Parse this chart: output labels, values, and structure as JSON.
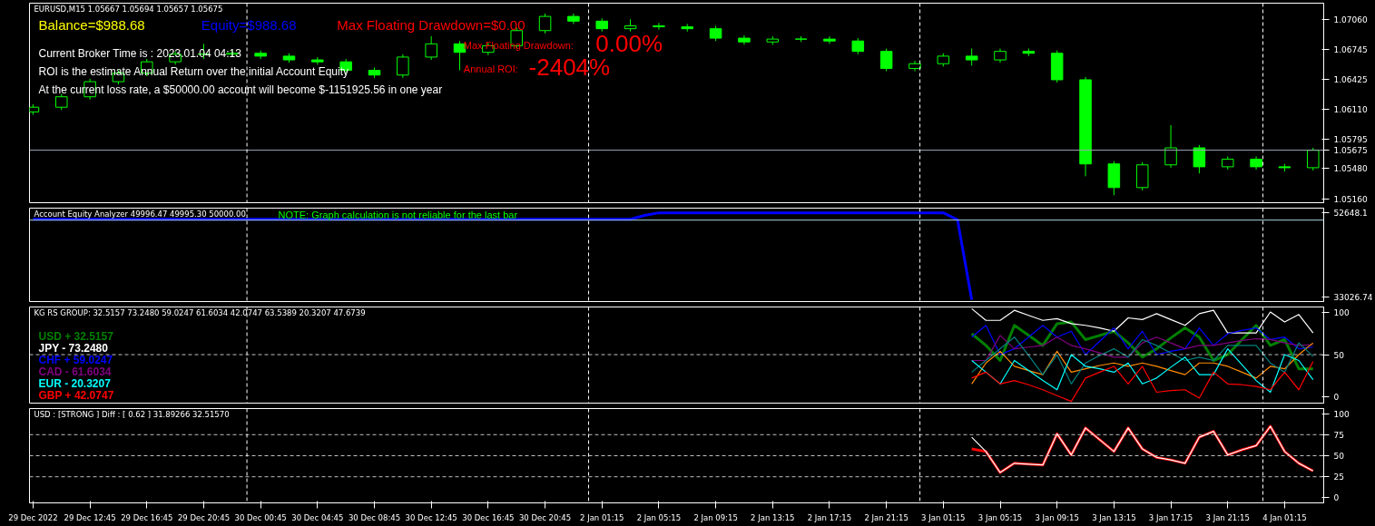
{
  "chart_data": [
    {
      "type": "candlestick",
      "title": "EURUSD,M15  1.05667 1.05694 1.05657 1.05675",
      "color": "#00ff00",
      "tick_labels": "y",
      "categories": [
        null,
        null,
        null,
        null,
        null,
        null,
        null,
        null,
        null,
        null,
        null,
        null,
        null,
        null,
        null,
        null,
        null,
        null,
        null,
        null,
        null,
        null,
        null,
        null,
        null,
        null,
        null,
        null,
        null,
        null,
        null,
        null,
        null,
        null,
        null,
        null,
        null,
        null,
        null,
        null,
        null,
        null,
        null,
        null,
        null,
        null,
        null,
        null,
        null,
        null,
        null,
        null,
        null,
        null,
        null,
        null,
        null,
        null,
        null,
        null,
        null,
        null,
        null,
        null,
        null,
        null,
        null,
        null,
        null,
        null,
        null,
        null,
        null,
        null,
        null,
        null,
        null,
        null,
        null,
        null,
        null,
        null,
        null,
        null,
        null,
        null,
        null,
        null,
        null,
        null,
        null
      ],
      "ohlc": [
        [
          1.0608,
          1.0616,
          1.0605,
          1.0613
        ],
        null,
        [
          1.0613,
          1.0627,
          1.061,
          1.0624
        ],
        null,
        [
          1.0624,
          1.0643,
          1.0621,
          1.064
        ],
        null,
        [
          1.064,
          1.0652,
          1.0637,
          1.0649
        ],
        null,
        [
          1.0649,
          1.0664,
          1.0646,
          1.0661
        ],
        null,
        [
          1.0661,
          1.0672,
          1.0658,
          1.0669
        ],
        null,
        [
          1.0669,
          1.068,
          1.0664,
          1.0669
        ],
        null,
        [
          1.0669,
          1.0673,
          1.0666,
          1.067
        ],
        null,
        [
          1.067,
          1.0673,
          1.0664,
          1.0667
        ],
        null,
        [
          1.0667,
          1.067,
          1.066,
          1.0663
        ],
        null,
        [
          1.0663,
          1.0666,
          1.0658,
          1.0661
        ],
        null,
        [
          1.0661,
          1.0664,
          1.0649,
          1.0652
        ],
        null,
        [
          1.0652,
          1.0655,
          1.0644,
          1.0647
        ],
        null,
        [
          1.0647,
          1.0669,
          1.0644,
          1.0666
        ],
        null,
        [
          1.0666,
          1.0688,
          1.0663,
          1.068
        ],
        null,
        [
          1.068,
          1.0683,
          1.0652,
          1.0671
        ],
        null,
        [
          1.0671,
          1.0681,
          1.0668,
          1.0678
        ],
        null,
        [
          1.0678,
          1.0697,
          1.0675,
          1.0694
        ],
        null,
        [
          1.0694,
          1.0712,
          1.0691,
          1.0709
        ],
        null,
        [
          1.0709,
          1.0712,
          1.0701,
          1.0704
        ],
        null,
        [
          1.0704,
          1.0707,
          1.0693,
          1.0696
        ],
        null,
        [
          1.0696,
          1.0706,
          1.0693,
          1.0699
        ],
        null,
        [
          1.0699,
          1.0702,
          1.0695,
          1.0698
        ],
        null,
        [
          1.0698,
          1.0701,
          1.0693,
          1.0696
        ],
        null,
        [
          1.0696,
          1.0699,
          1.0683,
          1.0686
        ],
        null,
        [
          1.0686,
          1.0689,
          1.0679,
          1.0682
        ],
        null,
        [
          1.0682,
          1.0688,
          1.0679,
          1.0685
        ],
        null,
        [
          1.0685,
          1.0688,
          1.0682,
          1.0685
        ],
        null,
        [
          1.0685,
          1.0688,
          1.068,
          1.0683
        ],
        null,
        [
          1.0683,
          1.0686,
          1.0669,
          1.0672
        ],
        null,
        [
          1.0672,
          1.0675,
          1.0651,
          1.0654
        ],
        null,
        [
          1.0654,
          1.0662,
          1.0651,
          1.0659
        ],
        null,
        [
          1.0659,
          1.067,
          1.0656,
          1.0667
        ],
        null,
        [
          1.0667,
          1.0675,
          1.0657,
          1.0663
        ],
        null,
        [
          1.0663,
          1.0675,
          1.066,
          1.0672
        ],
        null,
        [
          1.0672,
          1.0675,
          1.0667,
          1.067
        ],
        null,
        [
          1.067,
          1.0673,
          1.0639,
          1.0642
        ],
        null,
        [
          1.0642,
          1.0645,
          1.054,
          1.0553
        ],
        null,
        [
          1.0553,
          1.0556,
          1.052,
          1.0528
        ],
        null,
        [
          1.0528,
          1.0555,
          1.0525,
          1.0552
        ],
        null,
        [
          1.0552,
          1.0594,
          1.0549,
          1.057
        ],
        null,
        [
          1.057,
          1.0573,
          1.0543,
          1.055
        ],
        null,
        [
          1.055,
          1.0561,
          1.0547,
          1.0558
        ],
        null,
        [
          1.0558,
          1.0561,
          1.0547,
          1.055
        ],
        null,
        [
          1.055,
          1.0553,
          1.0545,
          1.0549
        ],
        null,
        [
          1.0549,
          1.057,
          1.0546,
          1.05675
        ]
      ],
      "ylim": [
        1.0512,
        1.0723
      ],
      "yticks": [
        {
          "value": 1.0706,
          "label": "1.07060"
        },
        1.06745,
        1.06425,
        {
          "value": 1.0611,
          "label": "1.06110"
        },
        1.05795,
        {
          "value": 1.0548,
          "label": "1.05480"
        },
        {
          "value": 1.0516,
          "label": "1.05160"
        }
      ],
      "ref_lines": [
        {
          "axis": "y",
          "value": 1.05675,
          "label": "1.05675",
          "color": "#a0a8b8",
          "line_style": "solid"
        }
      ],
      "annotations": [
        "Balance=$988.68",
        "Equity=$988.68",
        "Max Floating Drawdown=$0.00",
        "Current Broker Time is : 2023.01.04 04:13",
        "ROI is the estimate Annual Return over the initial Account Equity",
        "At the current loss rate,  a $50000.00 account will become $-1151925.56 in one year",
        "Max Floating Drawdown:",
        "0.00%",
        "Annual ROI:",
        "-2404%"
      ]
    },
    {
      "type": "line",
      "title": "Account Equity Analyzer 49996.47 49995.30 50000.00",
      "tick_labels": "y",
      "categories": [
        null,
        null,
        null,
        null,
        null,
        null,
        null,
        null,
        null,
        null,
        null,
        null,
        null,
        null,
        null,
        null,
        null,
        null,
        null,
        null,
        null,
        null,
        null,
        null,
        null,
        null,
        null,
        null,
        null,
        null,
        null,
        null,
        null,
        null,
        null,
        null,
        null,
        null,
        null,
        null,
        null,
        null,
        null,
        null,
        null,
        null,
        null,
        null,
        null,
        null,
        null,
        null,
        null,
        null,
        null,
        null,
        null,
        null,
        null,
        null,
        null,
        null,
        null,
        null,
        null,
        null,
        null,
        null,
        null,
        null,
        null,
        null,
        null,
        null,
        null,
        null,
        null,
        null,
        null,
        null,
        null,
        null,
        null,
        null,
        null,
        null,
        null,
        null,
        null,
        null,
        null
      ],
      "series": [
        {
          "color": "#0000ff",
          "values": [
            51100,
            51100,
            51100,
            51100,
            51100,
            51100,
            51100,
            51100,
            51100,
            51100,
            51100,
            51100,
            51100,
            51100,
            51100,
            51100,
            51100,
            51100,
            51100,
            51100,
            51100,
            51100,
            51100,
            51100,
            51100,
            51100,
            51100,
            51100,
            51100,
            51100,
            51100,
            51100,
            51100,
            51100,
            51100,
            51100,
            51100,
            51100,
            51100,
            51100,
            51100,
            51100,
            51100,
            52000,
            52600,
            52600,
            52600,
            52600,
            52600,
            52600,
            52600,
            52600,
            52600,
            52600,
            52600,
            52600,
            52600,
            52600,
            52600,
            52600,
            52600,
            52600,
            52600,
            52600,
            52600,
            51000,
            32400,
            null,
            null,
            null,
            null,
            null,
            null,
            null,
            null,
            null,
            null,
            null,
            null,
            null,
            null,
            null,
            null,
            null,
            null,
            null,
            null,
            null,
            null,
            null,
            null
          ]
        }
      ],
      "ylim": [
        31994,
        53681
      ],
      "yticks": [
        52648.1,
        33026.74
      ],
      "ref_lines": [
        {
          "axis": "y",
          "value": 50900,
          "color": "#add8e6",
          "line_style": "solid"
        }
      ],
      "annotations": [
        "NOTE: Graph calculation is not reliable for the last bar"
      ]
    },
    {
      "type": "line",
      "title": "KG RS GROUP:   32.5157 73.2480 59.0247 61.6034 42.0747 63.5389 20.3207 47.6739",
      "tick_labels": "y",
      "legend": "bottom left",
      "categories": [
        null,
        null,
        null,
        null,
        null,
        null,
        null,
        null,
        null,
        null,
        null,
        null,
        null,
        null,
        null,
        null,
        null,
        null,
        null,
        null,
        null,
        null,
        null,
        null,
        null,
        null,
        null,
        null,
        null,
        null,
        null,
        null,
        null,
        null,
        null,
        null,
        null,
        null,
        null,
        null,
        null,
        null,
        null,
        null,
        null,
        null,
        null,
        null,
        null,
        null,
        null,
        null,
        null,
        null,
        null,
        null,
        null,
        null,
        null,
        null,
        null,
        null,
        null,
        null,
        null,
        null,
        null,
        null,
        null,
        null,
        null,
        null,
        null,
        null,
        null,
        null,
        null,
        null,
        null,
        null,
        null,
        null,
        null,
        null,
        null,
        null,
        null,
        null,
        null,
        null,
        null
      ],
      "series": [
        {
          "name": "USD +  32.5157",
          "color": "#008000",
          "values": [
            null,
            null,
            null,
            null,
            null,
            null,
            null,
            null,
            null,
            null,
            null,
            null,
            null,
            null,
            null,
            null,
            null,
            null,
            null,
            null,
            null,
            null,
            null,
            null,
            null,
            null,
            null,
            null,
            null,
            null,
            null,
            null,
            null,
            null,
            null,
            null,
            null,
            null,
            null,
            null,
            null,
            null,
            null,
            null,
            null,
            null,
            null,
            null,
            null,
            null,
            null,
            null,
            null,
            null,
            null,
            null,
            null,
            null,
            null,
            null,
            null,
            null,
            null,
            null,
            null,
            null,
            75,
            61,
            43,
            85,
            73,
            61,
            87,
            89,
            68,
            73,
            78,
            64,
            47,
            57,
            70,
            82,
            71,
            43,
            50,
            68,
            85,
            61,
            68,
            33,
            33
          ]
        },
        {
          "name": "JPY -  73.2480",
          "color": "#ffffff",
          "values": [
            null,
            null,
            null,
            null,
            null,
            null,
            null,
            null,
            null,
            null,
            null,
            null,
            null,
            null,
            null,
            null,
            null,
            null,
            null,
            null,
            null,
            null,
            null,
            null,
            null,
            null,
            null,
            null,
            null,
            null,
            null,
            null,
            null,
            null,
            null,
            null,
            null,
            null,
            null,
            null,
            null,
            null,
            null,
            null,
            null,
            null,
            null,
            null,
            null,
            null,
            null,
            null,
            null,
            null,
            null,
            null,
            null,
            null,
            null,
            null,
            null,
            null,
            null,
            null,
            null,
            null,
            105,
            91,
            91,
            103,
            97,
            91,
            93,
            87,
            85,
            82,
            78,
            94,
            92,
            99,
            92,
            85,
            99,
            103,
            76,
            76,
            76,
            101,
            89,
            98,
            76
          ]
        },
        {
          "name": "CHF +  59.0247",
          "color": "#0000ff",
          "values": [
            null,
            null,
            null,
            null,
            null,
            null,
            null,
            null,
            null,
            null,
            null,
            null,
            null,
            null,
            null,
            null,
            null,
            null,
            null,
            null,
            null,
            null,
            null,
            null,
            null,
            null,
            null,
            null,
            null,
            null,
            null,
            null,
            null,
            null,
            null,
            null,
            null,
            null,
            null,
            null,
            null,
            null,
            null,
            null,
            null,
            null,
            null,
            null,
            null,
            null,
            null,
            null,
            null,
            null,
            null,
            null,
            null,
            null,
            null,
            null,
            null,
            null,
            null,
            null,
            null,
            null,
            71,
            85,
            50,
            57,
            71,
            85,
            71,
            78,
            50,
            66,
            82,
            57,
            78,
            50,
            54,
            57,
            82,
            61,
            75,
            79,
            82,
            68,
            71,
            57,
            59
          ]
        },
        {
          "name": "CAD -  61.6034",
          "color": "#800080",
          "values": [
            null,
            null,
            null,
            null,
            null,
            null,
            null,
            null,
            null,
            null,
            null,
            null,
            null,
            null,
            null,
            null,
            null,
            null,
            null,
            null,
            null,
            null,
            null,
            null,
            null,
            null,
            null,
            null,
            null,
            null,
            null,
            null,
            null,
            null,
            null,
            null,
            null,
            null,
            null,
            null,
            null,
            null,
            null,
            null,
            null,
            null,
            null,
            null,
            null,
            null,
            null,
            null,
            null,
            null,
            null,
            null,
            null,
            null,
            null,
            null,
            null,
            null,
            null,
            null,
            null,
            null,
            43,
            43,
            73,
            57,
            59,
            61,
            71,
            61,
            57,
            52,
            47,
            47,
            64,
            71,
            64,
            57,
            61,
            61,
            64,
            67,
            69,
            68,
            64,
            61,
            62
          ]
        },
        {
          "color": "#ff8c00",
          "values": [
            null,
            null,
            null,
            null,
            null,
            null,
            null,
            null,
            null,
            null,
            null,
            null,
            null,
            null,
            null,
            null,
            null,
            null,
            null,
            null,
            null,
            null,
            null,
            null,
            null,
            null,
            null,
            null,
            null,
            null,
            null,
            null,
            null,
            null,
            null,
            null,
            null,
            null,
            null,
            null,
            null,
            null,
            null,
            null,
            null,
            null,
            null,
            null,
            null,
            null,
            null,
            null,
            null,
            null,
            null,
            null,
            null,
            null,
            null,
            null,
            null,
            null,
            null,
            null,
            null,
            null,
            15,
            40,
            54,
            36,
            31,
            26,
            54,
            29,
            33,
            37,
            40,
            36,
            40,
            36,
            31,
            26,
            40,
            40,
            36,
            29,
            22,
            36,
            33,
            50,
            64
          ]
        },
        {
          "color": "#008080",
          "values": [
            null,
            null,
            null,
            null,
            null,
            null,
            null,
            null,
            null,
            null,
            null,
            null,
            null,
            null,
            null,
            null,
            null,
            null,
            null,
            null,
            null,
            null,
            null,
            null,
            null,
            null,
            null,
            null,
            null,
            null,
            null,
            null,
            null,
            null,
            null,
            null,
            null,
            null,
            null,
            null,
            null,
            null,
            null,
            null,
            null,
            null,
            null,
            null,
            null,
            null,
            null,
            null,
            null,
            null,
            null,
            null,
            null,
            null,
            null,
            null,
            null,
            null,
            null,
            null,
            null,
            null,
            29,
            43,
            57,
            71,
            49,
            26,
            50,
            15,
            40,
            49,
            57,
            47,
            68,
            61,
            52,
            43,
            47,
            43,
            61,
            61,
            61,
            40,
            29,
            64,
            48
          ]
        },
        {
          "name": "EUR -  20.3207",
          "color": "#00ffff",
          "values": [
            null,
            null,
            null,
            null,
            null,
            null,
            null,
            null,
            null,
            null,
            null,
            null,
            null,
            null,
            null,
            null,
            null,
            null,
            null,
            null,
            null,
            null,
            null,
            null,
            null,
            null,
            null,
            null,
            null,
            null,
            null,
            null,
            null,
            null,
            null,
            null,
            null,
            null,
            null,
            null,
            null,
            null,
            null,
            null,
            null,
            null,
            null,
            null,
            null,
            null,
            null,
            null,
            null,
            null,
            null,
            null,
            null,
            null,
            null,
            null,
            null,
            null,
            null,
            null,
            null,
            null,
            43,
            29,
            15,
            43,
            31,
            19,
            8,
            50,
            36,
            33,
            29,
            40,
            15,
            22,
            35,
            47,
            26,
            26,
            57,
            38,
            19,
            5,
            50,
            43,
            20
          ]
        },
        {
          "name": "GBP +  42.0747",
          "color": "#ff0000",
          "values": [
            null,
            null,
            null,
            null,
            null,
            null,
            null,
            null,
            null,
            null,
            null,
            null,
            null,
            null,
            null,
            null,
            null,
            null,
            null,
            null,
            null,
            null,
            null,
            null,
            null,
            null,
            null,
            null,
            null,
            null,
            null,
            null,
            null,
            null,
            null,
            null,
            null,
            null,
            null,
            null,
            null,
            null,
            null,
            null,
            null,
            null,
            null,
            null,
            null,
            null,
            null,
            null,
            null,
            null,
            null,
            null,
            null,
            null,
            null,
            null,
            null,
            null,
            null,
            null,
            null,
            null,
            22,
            29,
            15,
            19,
            14,
            8,
            1,
            -6,
            22,
            29,
            36,
            15,
            36,
            5,
            7,
            8,
            -2,
            29,
            15,
            14,
            12,
            8,
            29,
            8,
            42
          ]
        }
      ],
      "ylim": [
        -8,
        107
      ],
      "yticks": [
        0,
        50,
        100
      ],
      "ref_lines": [
        {
          "axis": "y",
          "value": 50,
          "color": "#c0c0c0",
          "line_style": "dashed"
        }
      ]
    },
    {
      "type": "line",
      "title": "USD :  [STRONG ]    Diff : [ 0.62 ]     31.89266 32.51570",
      "categories": [
        "29 Dec 2022",
        null,
        null,
        null,
        "29 Dec 12:45",
        null,
        null,
        null,
        "29 Dec 16:45",
        null,
        null,
        null,
        "29 Dec 20:45",
        null,
        null,
        null,
        "30 Dec 00:45",
        null,
        null,
        null,
        "30 Dec 04:45",
        null,
        null,
        null,
        "30 Dec 08:45",
        null,
        null,
        null,
        "30 Dec 12:45",
        null,
        null,
        null,
        "30 Dec 16:45",
        null,
        null,
        null,
        "30 Dec 20:45",
        null,
        null,
        null,
        "2 Jan 01:15",
        null,
        null,
        null,
        "2 Jan 05:15",
        null,
        null,
        null,
        "2 Jan 09:15",
        null,
        null,
        null,
        "2 Jan 13:15",
        null,
        null,
        null,
        "2 Jan 17:15",
        null,
        null,
        null,
        "2 Jan 21:15",
        null,
        null,
        null,
        "3 Jan 01:15",
        null,
        null,
        null,
        "3 Jan 05:15",
        null,
        null,
        null,
        "3 Jan 09:15",
        null,
        null,
        null,
        "3 Jan 13:15",
        null,
        null,
        null,
        "3 Jan 17:15",
        null,
        null,
        null,
        "3 Jan 21:15",
        null,
        null,
        null,
        "4 Jan 01:15",
        null,
        null
      ],
      "series": [
        {
          "color": "#ff0000",
          "values": [
            null,
            null,
            null,
            null,
            null,
            null,
            null,
            null,
            null,
            null,
            null,
            null,
            null,
            null,
            null,
            null,
            null,
            null,
            null,
            null,
            null,
            null,
            null,
            null,
            null,
            null,
            null,
            null,
            null,
            null,
            null,
            null,
            null,
            null,
            null,
            null,
            null,
            null,
            null,
            null,
            null,
            null,
            null,
            null,
            null,
            null,
            null,
            null,
            null,
            null,
            null,
            null,
            null,
            null,
            null,
            null,
            null,
            null,
            null,
            null,
            null,
            null,
            null,
            null,
            null,
            null,
            58,
            55,
            30,
            41,
            40,
            39,
            76,
            51,
            83,
            69,
            55,
            83,
            58,
            48,
            45,
            41,
            72,
            79,
            51,
            57,
            62,
            85,
            55,
            41,
            32
          ]
        },
        {
          "color": "#ffffff",
          "values": [
            null,
            null,
            null,
            null,
            null,
            null,
            null,
            null,
            null,
            null,
            null,
            null,
            null,
            null,
            null,
            null,
            null,
            null,
            null,
            null,
            null,
            null,
            null,
            null,
            null,
            null,
            null,
            null,
            null,
            null,
            null,
            null,
            null,
            null,
            null,
            null,
            null,
            null,
            null,
            null,
            null,
            null,
            null,
            null,
            null,
            null,
            null,
            null,
            null,
            null,
            null,
            null,
            null,
            null,
            null,
            null,
            null,
            null,
            null,
            null,
            null,
            null,
            null,
            null,
            null,
            null,
            72,
            55,
            30,
            41,
            40,
            39,
            76,
            51,
            83,
            69,
            55,
            83,
            58,
            48,
            45,
            41,
            72,
            79,
            51,
            57,
            62,
            85,
            55,
            41,
            32
          ]
        }
      ],
      "ylim": [
        -6,
        106
      ],
      "yticks": [
        0,
        25,
        50,
        75,
        100
      ],
      "ref_lines": [
        {
          "axis": "y",
          "value": 25,
          "color": "#c0c0c0",
          "line_style": "dashed"
        },
        {
          "axis": "y",
          "value": 50,
          "color": "#c0c0c0",
          "line_style": "dashed"
        },
        {
          "axis": "y",
          "value": 75,
          "color": "#c0c0c0",
          "line_style": "dashed"
        }
      ]
    }
  ]
}
